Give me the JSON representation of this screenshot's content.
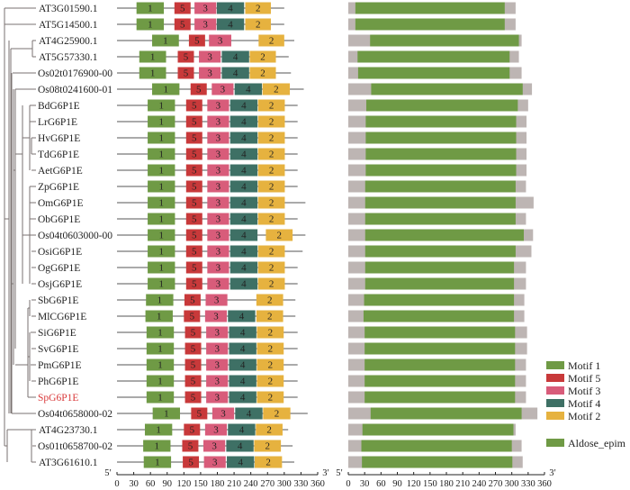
{
  "figure": {
    "motif_panel_axis": {
      "min": 0,
      "max": 360,
      "step": 30,
      "start_label": "5′",
      "end_label": "3′"
    },
    "domain_panel_axis": {
      "min": 0,
      "max": 360,
      "step": 30,
      "start_label": "5′",
      "end_label": "3′"
    },
    "colors": {
      "motif1": "#6f9a45",
      "motif5": "#c8393a",
      "motif3": "#d85c7a",
      "motif4": "#3e7065",
      "motif2": "#e6b23f",
      "domain": "#6f9a45",
      "protein_bg": "#bdb5b3",
      "backbone": "#555555",
      "tree": "#7a7270",
      "highlight_label": "#d9393a"
    },
    "legend": [
      {
        "key": "motif1",
        "label": "Motif 1"
      },
      {
        "key": "motif5",
        "label": "Motif 5"
      },
      {
        "key": "motif3",
        "label": "Motif 3"
      },
      {
        "key": "motif4",
        "label": "Motif 4"
      },
      {
        "key": "motif2",
        "label": "Motif 2"
      },
      {
        "key": "domain",
        "label": "Aldose_epim",
        "gap_before": true
      }
    ],
    "genes": [
      {
        "name": "AT3G01590.1",
        "length": 300,
        "motifs": [
          [
            "1",
            35,
            84
          ],
          [
            "5",
            103,
            132
          ],
          [
            "3",
            139,
            178
          ],
          [
            "4",
            179,
            228
          ],
          [
            "2",
            230,
            276
          ]
        ],
        "domain": [
          13,
          287
        ],
        "protein_len": 307
      },
      {
        "name": "AT5G14500.1",
        "length": 300,
        "motifs": [
          [
            "1",
            35,
            84
          ],
          [
            "5",
            103,
            132
          ],
          [
            "3",
            139,
            178
          ],
          [
            "4",
            179,
            228
          ],
          [
            "2",
            230,
            276
          ]
        ],
        "domain": [
          13,
          287
        ],
        "protein_len": 307
      },
      {
        "name": "AT4G25900.1",
        "length": 318,
        "motifs": [
          [
            "1",
            63,
            111
          ],
          [
            "5",
            129,
            158
          ],
          [
            "3",
            165,
            205
          ],
          [
            "2",
            254,
            300
          ]
        ],
        "domain": [
          40,
          313
        ],
        "protein_len": 318
      },
      {
        "name": "AT5G57330.1",
        "length": 308,
        "motifs": [
          [
            "1",
            40,
            88
          ],
          [
            "5",
            109,
            138
          ],
          [
            "3",
            147,
            186
          ],
          [
            "4",
            188,
            237
          ],
          [
            "2",
            238,
            285
          ]
        ],
        "domain": [
          17,
          296
        ],
        "protein_len": 313
      },
      {
        "name": "Os02t0176900-00",
        "length": 312,
        "motifs": [
          [
            "1",
            40,
            88
          ],
          [
            "5",
            109,
            138
          ],
          [
            "3",
            147,
            186
          ],
          [
            "4",
            188,
            237
          ],
          [
            "2",
            238,
            285
          ]
        ],
        "domain": [
          18,
          296
        ],
        "protein_len": 318
      },
      {
        "name": "Os08t0241600-01",
        "length": 335,
        "motifs": [
          [
            "1",
            63,
            112
          ],
          [
            "5",
            132,
            161
          ],
          [
            "3",
            170,
            209
          ],
          [
            "4",
            211,
            260
          ],
          [
            "2",
            261,
            310
          ]
        ],
        "domain": [
          42,
          320
        ],
        "protein_len": 337
      },
      {
        "name": "BdG6P1E",
        "length": 324,
        "motifs": [
          [
            "1",
            55,
            104
          ],
          [
            "5",
            124,
            153
          ],
          [
            "3",
            162,
            201
          ],
          [
            "4",
            203,
            252
          ],
          [
            "2",
            253,
            301
          ]
        ],
        "domain": [
          33,
          311
        ],
        "protein_len": 330
      },
      {
        "name": "LrG6P1E",
        "length": 324,
        "motifs": [
          [
            "1",
            55,
            104
          ],
          [
            "5",
            124,
            153
          ],
          [
            "3",
            162,
            201
          ],
          [
            "4",
            203,
            252
          ],
          [
            "2",
            253,
            301
          ]
        ],
        "domain": [
          32,
          308
        ],
        "protein_len": 327
      },
      {
        "name": "HvG6P1E",
        "length": 324,
        "motifs": [
          [
            "1",
            55,
            104
          ],
          [
            "5",
            124,
            153
          ],
          [
            "3",
            162,
            201
          ],
          [
            "4",
            203,
            252
          ],
          [
            "2",
            253,
            301
          ]
        ],
        "domain": [
          32,
          308
        ],
        "protein_len": 327
      },
      {
        "name": "TdG6P1E",
        "length": 324,
        "motifs": [
          [
            "1",
            55,
            104
          ],
          [
            "5",
            124,
            153
          ],
          [
            "3",
            162,
            201
          ],
          [
            "4",
            203,
            252
          ],
          [
            "2",
            253,
            301
          ]
        ],
        "domain": [
          32,
          308
        ],
        "protein_len": 327
      },
      {
        "name": "AetG6P1E",
        "length": 324,
        "motifs": [
          [
            "1",
            55,
            104
          ],
          [
            "5",
            124,
            153
          ],
          [
            "3",
            162,
            201
          ],
          [
            "4",
            203,
            252
          ],
          [
            "2",
            253,
            301
          ]
        ],
        "domain": [
          32,
          308
        ],
        "protein_len": 327
      },
      {
        "name": "ZpG6P1E",
        "length": 324,
        "motifs": [
          [
            "1",
            55,
            104
          ],
          [
            "5",
            124,
            153
          ],
          [
            "3",
            162,
            201
          ],
          [
            "4",
            203,
            252
          ],
          [
            "2",
            253,
            301
          ]
        ],
        "domain": [
          31,
          307
        ],
        "protein_len": 326
      },
      {
        "name": "OmG6P1E",
        "length": 338,
        "motifs": [
          [
            "1",
            55,
            104
          ],
          [
            "5",
            124,
            153
          ],
          [
            "3",
            162,
            201
          ],
          [
            "4",
            203,
            252
          ],
          [
            "2",
            253,
            301
          ]
        ],
        "domain": [
          31,
          307
        ],
        "protein_len": 340
      },
      {
        "name": "ObG6P1E",
        "length": 324,
        "motifs": [
          [
            "1",
            55,
            104
          ],
          [
            "5",
            124,
            153
          ],
          [
            "3",
            162,
            201
          ],
          [
            "4",
            203,
            252
          ],
          [
            "2",
            253,
            301
          ]
        ],
        "domain": [
          31,
          307
        ],
        "protein_len": 326
      },
      {
        "name": "Os04t0603000-00",
        "length": 338,
        "motifs": [
          [
            "1",
            55,
            104
          ],
          [
            "5",
            124,
            153
          ],
          [
            "3",
            162,
            201
          ],
          [
            "4",
            203,
            252
          ],
          [
            "2",
            267,
            315
          ]
        ],
        "domain": [
          31,
          322
        ],
        "protein_len": 339
      },
      {
        "name": "OsiG6P1E",
        "length": 333,
        "motifs": [
          [
            "1",
            55,
            104
          ],
          [
            "5",
            124,
            153
          ],
          [
            "3",
            162,
            201
          ],
          [
            "4",
            203,
            252
          ],
          [
            "2",
            253,
            301
          ]
        ],
        "domain": [
          31,
          307
        ],
        "protein_len": 336
      },
      {
        "name": "OgG6P1E",
        "length": 324,
        "motifs": [
          [
            "1",
            55,
            104
          ],
          [
            "5",
            124,
            153
          ],
          [
            "3",
            162,
            201
          ],
          [
            "4",
            203,
            252
          ],
          [
            "2",
            253,
            301
          ]
        ],
        "domain": [
          31,
          304
        ],
        "protein_len": 326
      },
      {
        "name": "OsjG6P1E",
        "length": 324,
        "motifs": [
          [
            "1",
            55,
            104
          ],
          [
            "5",
            124,
            153
          ],
          [
            "3",
            162,
            201
          ],
          [
            "4",
            203,
            252
          ],
          [
            "2",
            253,
            301
          ]
        ],
        "domain": [
          31,
          304
        ],
        "protein_len": 326
      },
      {
        "name": "SbG6P1E",
        "length": 320,
        "motifs": [
          [
            "1",
            52,
            101
          ],
          [
            "5",
            121,
            150
          ],
          [
            "3",
            159,
            198
          ],
          [
            "2",
            250,
            298
          ]
        ],
        "domain": [
          29,
          304
        ],
        "protein_len": 323
      },
      {
        "name": "MlCG6P1E",
        "length": 320,
        "motifs": [
          [
            "1",
            51,
            100
          ],
          [
            "5",
            120,
            149
          ],
          [
            "3",
            158,
            197
          ],
          [
            "4",
            199,
            248
          ],
          [
            "2",
            250,
            298
          ]
        ],
        "domain": [
          28,
          304
        ],
        "protein_len": 323
      },
      {
        "name": "SiG6P1E",
        "length": 324,
        "motifs": [
          [
            "1",
            53,
            102
          ],
          [
            "5",
            122,
            151
          ],
          [
            "3",
            160,
            199
          ],
          [
            "4",
            201,
            250
          ],
          [
            "2",
            251,
            299
          ]
        ],
        "domain": [
          30,
          306
        ],
        "protein_len": 328
      },
      {
        "name": "SvG6P1E",
        "length": 324,
        "motifs": [
          [
            "1",
            53,
            102
          ],
          [
            "5",
            122,
            151
          ],
          [
            "3",
            160,
            199
          ],
          [
            "4",
            201,
            250
          ],
          [
            "2",
            251,
            299
          ]
        ],
        "domain": [
          30,
          306
        ],
        "protein_len": 328
      },
      {
        "name": "PmG6P1E",
        "length": 324,
        "motifs": [
          [
            "1",
            53,
            102
          ],
          [
            "5",
            122,
            151
          ],
          [
            "3",
            160,
            199
          ],
          [
            "4",
            201,
            250
          ],
          [
            "2",
            251,
            299
          ]
        ],
        "domain": [
          30,
          306
        ],
        "protein_len": 326
      },
      {
        "name": "PhG6P1E",
        "length": 324,
        "motifs": [
          [
            "1",
            53,
            102
          ],
          [
            "5",
            122,
            151
          ],
          [
            "3",
            160,
            199
          ],
          [
            "4",
            201,
            250
          ],
          [
            "2",
            251,
            299
          ]
        ],
        "domain": [
          30,
          306
        ],
        "protein_len": 326
      },
      {
        "name": "SpG6P1E",
        "length": 324,
        "motifs": [
          [
            "1",
            53,
            102
          ],
          [
            "5",
            122,
            151
          ],
          [
            "3",
            160,
            199
          ],
          [
            "4",
            201,
            250
          ],
          [
            "2",
            251,
            299
          ]
        ],
        "domain": [
          30,
          306
        ],
        "protein_len": 326,
        "highlight": true
      },
      {
        "name": "Os04t0658000-02",
        "length": 342,
        "motifs": [
          [
            "1",
            64,
            113
          ],
          [
            "5",
            133,
            162
          ],
          [
            "3",
            171,
            210
          ],
          [
            "4",
            212,
            261
          ],
          [
            "2",
            262,
            311
          ]
        ],
        "domain": [
          41,
          318
        ],
        "protein_len": 347
      },
      {
        "name": "AT4G23730.1",
        "length": 307,
        "motifs": [
          [
            "1",
            50,
            99
          ],
          [
            "5",
            120,
            149
          ],
          [
            "3",
            158,
            197
          ],
          [
            "4",
            199,
            248
          ],
          [
            "2",
            249,
            297
          ]
        ],
        "domain": [
          26,
          303
        ],
        "protein_len": 307
      },
      {
        "name": "Os01t0658700-02",
        "length": 315,
        "motifs": [
          [
            "1",
            47,
            96
          ],
          [
            "5",
            117,
            146
          ],
          [
            "3",
            155,
            194
          ],
          [
            "4",
            196,
            245
          ],
          [
            "2",
            246,
            294
          ]
        ],
        "domain": [
          24,
          300
        ],
        "protein_len": 318
      },
      {
        "name": "AT3G61610.1",
        "length": 318,
        "motifs": [
          [
            "1",
            48,
            97
          ],
          [
            "5",
            118,
            147
          ],
          [
            "3",
            156,
            195
          ],
          [
            "4",
            197,
            246
          ],
          [
            "2",
            247,
            296
          ]
        ],
        "domain": [
          25,
          301
        ],
        "protein_len": 320
      }
    ]
  }
}
